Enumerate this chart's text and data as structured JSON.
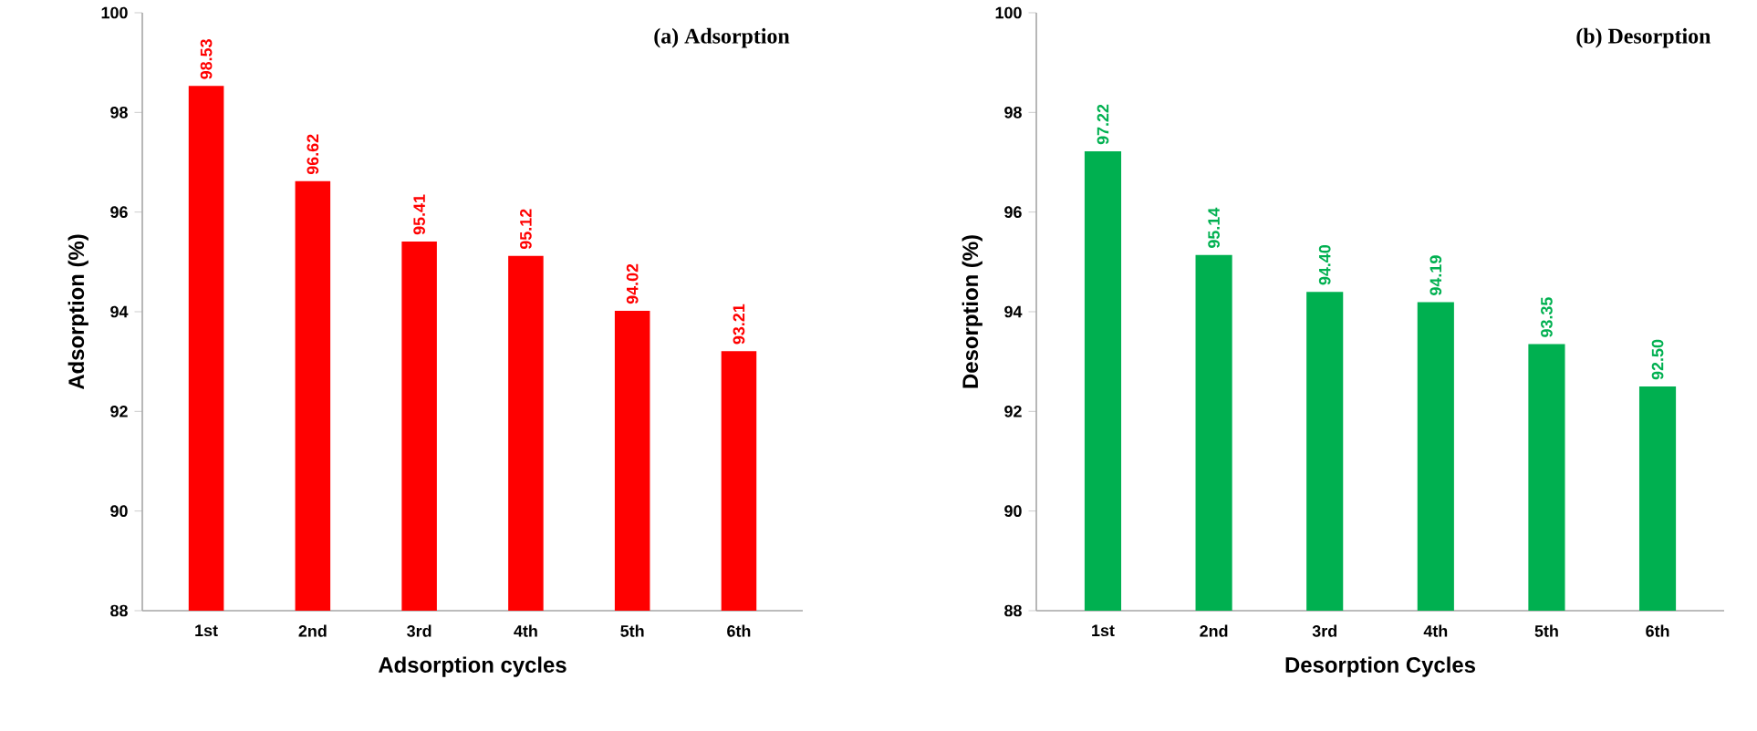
{
  "chart_data": [
    {
      "type": "bar",
      "title": "(a) Adsorption",
      "xlabel": "Adsorption cycles",
      "ylabel": "Adsorption (%)",
      "categories": [
        "1st",
        "2nd",
        "3rd",
        "4th",
        "5th",
        "6th"
      ],
      "values": [
        98.53,
        96.62,
        95.41,
        95.12,
        94.02,
        93.21
      ],
      "value_labels": [
        "98.53",
        "96.62",
        "95.41",
        "95.12",
        "94.02",
        "93.21"
      ],
      "color": "#ff0000",
      "ylim": [
        88,
        100
      ],
      "yticks": [
        88,
        90,
        92,
        94,
        96,
        98,
        100
      ]
    },
    {
      "type": "bar",
      "title": "(b) Desorption",
      "xlabel": "Desorption Cycles",
      "ylabel": "Desorption (%)",
      "categories": [
        "1st",
        "2nd",
        "3rd",
        "4th",
        "5th",
        "6th"
      ],
      "values": [
        97.22,
        95.14,
        94.4,
        94.19,
        93.35,
        92.5
      ],
      "value_labels": [
        "97.22",
        "95.14",
        "94.40",
        "94.19",
        "93.35",
        "92.50"
      ],
      "color": "#00b050",
      "ylim": [
        88,
        100
      ],
      "yticks": [
        88,
        90,
        92,
        94,
        96,
        98,
        100
      ]
    }
  ]
}
